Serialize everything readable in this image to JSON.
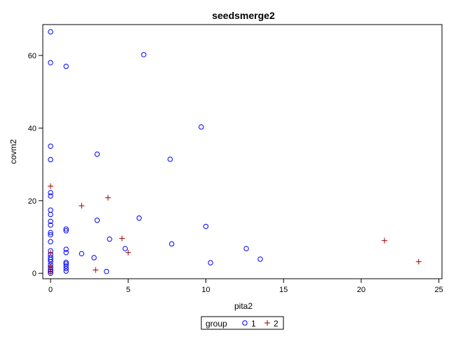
{
  "chart_data": {
    "type": "scatter",
    "title": "seedsmerge2",
    "xlabel": "pita2",
    "ylabel": "covm2",
    "xlim": [
      -0.5,
      25.2
    ],
    "ylim": [
      -1.5,
      68.5
    ],
    "xticks": [
      0,
      5,
      10,
      15,
      20,
      25
    ],
    "yticks": [
      0,
      20,
      40,
      60
    ],
    "grid": false,
    "legend_title": "group",
    "legend_placement": "bottom-center",
    "series": [
      {
        "name": "1",
        "marker": "circle",
        "color": "#0000ff",
        "points": [
          [
            0,
            66.5
          ],
          [
            0,
            58.0
          ],
          [
            0,
            35.0
          ],
          [
            0,
            31.3
          ],
          [
            0,
            22.2
          ],
          [
            0,
            21.3
          ],
          [
            0,
            17.4
          ],
          [
            0,
            16.2
          ],
          [
            0,
            14.3
          ],
          [
            0,
            13.3
          ],
          [
            0,
            11.2
          ],
          [
            0,
            10.6
          ],
          [
            0,
            8.7
          ],
          [
            0,
            6.2
          ],
          [
            0,
            5.1
          ],
          [
            0,
            4.4
          ],
          [
            0,
            3.8
          ],
          [
            0,
            3.2
          ],
          [
            0,
            2.4
          ],
          [
            0,
            1.7
          ],
          [
            0,
            1.0
          ],
          [
            0,
            0.5
          ],
          [
            0,
            0.0
          ],
          [
            1,
            57.0
          ],
          [
            1,
            12.2
          ],
          [
            1,
            11.7
          ],
          [
            1,
            6.6
          ],
          [
            1,
            5.7
          ],
          [
            1,
            3.0
          ],
          [
            1,
            2.6
          ],
          [
            1,
            2.0
          ],
          [
            1,
            1.3
          ],
          [
            1,
            0.6
          ],
          [
            2,
            5.4
          ],
          [
            2.8,
            4.3
          ],
          [
            3,
            32.8
          ],
          [
            3,
            14.6
          ],
          [
            3.6,
            0.5
          ],
          [
            3.8,
            9.4
          ],
          [
            4.8,
            6.8
          ],
          [
            5.7,
            15.2
          ],
          [
            6.0,
            60.2
          ],
          [
            7.7,
            31.4
          ],
          [
            7.8,
            8.1
          ],
          [
            9.7,
            40.3
          ],
          [
            10.0,
            12.9
          ],
          [
            10.3,
            2.9
          ],
          [
            12.6,
            6.8
          ],
          [
            13.5,
            3.9
          ]
        ]
      },
      {
        "name": "2",
        "marker": "plus",
        "color": "#990000",
        "points": [
          [
            0,
            24.0
          ],
          [
            0,
            5.6
          ],
          [
            0,
            1.8
          ],
          [
            0,
            1.0
          ],
          [
            0,
            0.4
          ],
          [
            2.0,
            18.6
          ],
          [
            2.9,
            0.9
          ],
          [
            3.7,
            20.8
          ],
          [
            4.6,
            9.6
          ],
          [
            5.0,
            5.7
          ],
          [
            21.5,
            9.0
          ],
          [
            23.7,
            3.2
          ]
        ]
      }
    ]
  }
}
